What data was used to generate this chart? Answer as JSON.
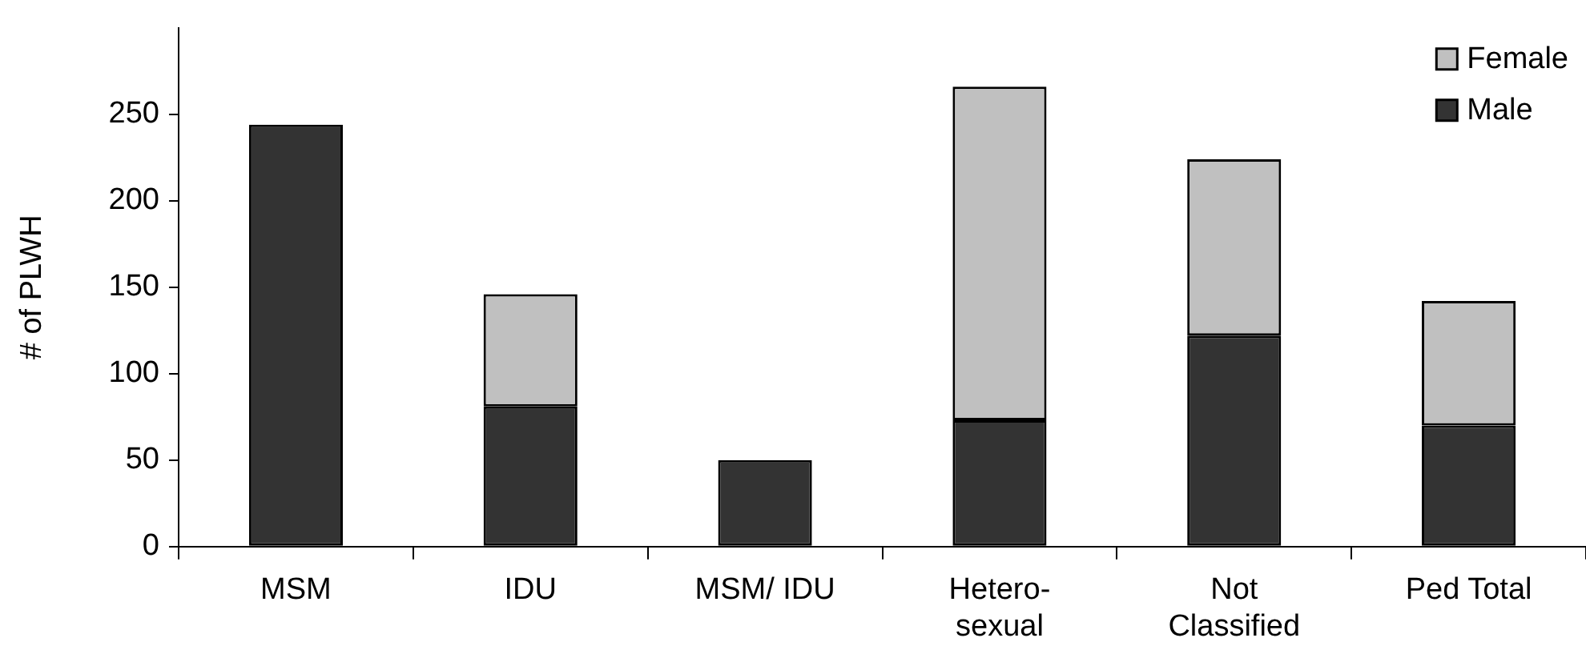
{
  "chart_data": {
    "type": "bar",
    "stacked": true,
    "ylabel": "# of PLWH",
    "categories": [
      "MSM",
      "IDU",
      "MSM/ IDU",
      "Hetero-\nsexual",
      "Not\nClassified",
      "Ped Total"
    ],
    "series": [
      {
        "name": "Male",
        "color": "#333333",
        "values": [
          244,
          81,
          50,
          73,
          122,
          70
        ]
      },
      {
        "name": "Female",
        "color": "#c0c0c0",
        "values": [
          null,
          65,
          null,
          193,
          102,
          72
        ]
      }
    ],
    "ylim": [
      0,
      300
    ],
    "yticks": [
      0,
      50,
      100,
      150,
      200,
      250
    ],
    "grid": false,
    "legend": "top right"
  }
}
